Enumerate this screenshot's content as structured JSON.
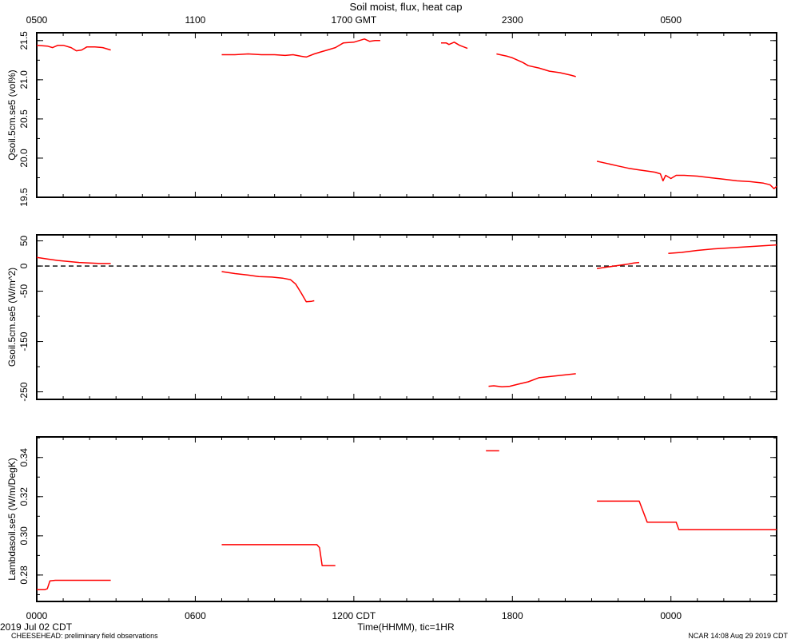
{
  "title": "Soil moist, flux, heat cap",
  "top_axis": {
    "ticks": [
      "0500",
      "1100",
      "1700 GMT",
      "2300",
      "0500"
    ]
  },
  "bottom_axis": {
    "ticks": [
      "0000",
      "0600",
      "1200 CDT",
      "1800",
      "0000"
    ],
    "xlabel": "Time(HHMM), tic=1HR"
  },
  "footer": {
    "date": "2019 Jul 02 CDT",
    "left": "CHEESEHEAD: preliminary field observations",
    "right": "NCAR 14:08 Aug 29 2019 CDT"
  },
  "colors": {
    "series": "#ff0000"
  },
  "chart_data": [
    {
      "type": "line",
      "ylabel": "Qsoil.5cm.se5 (vol%)",
      "ylim": [
        19.5,
        21.6
      ],
      "yticks": [
        "19.5",
        "20.0",
        "20.5",
        "21.0",
        "21.5"
      ],
      "x_unit": "hour CDT",
      "segments": [
        [
          [
            0,
            21.44
          ],
          [
            0.4,
            21.43
          ],
          [
            0.6,
            21.41
          ],
          [
            0.8,
            21.44
          ],
          [
            1.0,
            21.44
          ],
          [
            1.3,
            21.41
          ],
          [
            1.5,
            21.37
          ],
          [
            1.7,
            21.38
          ],
          [
            1.9,
            21.42
          ],
          [
            2.2,
            21.42
          ],
          [
            2.5,
            21.41
          ],
          [
            2.8,
            21.38
          ]
        ],
        [
          [
            7.0,
            21.32
          ],
          [
            7.5,
            21.32
          ],
          [
            8.0,
            21.33
          ],
          [
            8.5,
            21.32
          ],
          [
            9.0,
            21.32
          ],
          [
            9.4,
            21.31
          ],
          [
            9.7,
            21.32
          ],
          [
            10.0,
            21.3
          ],
          [
            10.2,
            21.29
          ],
          [
            10.5,
            21.33
          ],
          [
            10.8,
            21.36
          ],
          [
            11.0,
            21.38
          ],
          [
            11.3,
            21.41
          ],
          [
            11.6,
            21.47
          ],
          [
            12.0,
            21.48
          ],
          [
            12.2,
            21.5
          ],
          [
            12.4,
            21.52
          ],
          [
            12.6,
            21.49
          ],
          [
            12.8,
            21.5
          ],
          [
            13.0,
            21.5
          ]
        ],
        [
          [
            15.3,
            21.47
          ],
          [
            15.5,
            21.47
          ],
          [
            15.6,
            21.45
          ],
          [
            15.8,
            21.48
          ],
          [
            16.0,
            21.44
          ],
          [
            16.3,
            21.4
          ]
        ],
        [
          [
            17.4,
            21.33
          ],
          [
            17.8,
            21.3
          ],
          [
            18.0,
            21.28
          ],
          [
            18.4,
            21.22
          ],
          [
            18.6,
            21.18
          ],
          [
            19.0,
            21.15
          ],
          [
            19.4,
            21.11
          ],
          [
            19.8,
            21.09
          ],
          [
            20.2,
            21.06
          ],
          [
            20.4,
            21.04
          ]
        ],
        [
          [
            21.2,
            19.96
          ],
          [
            21.6,
            19.93
          ],
          [
            22.0,
            19.9
          ],
          [
            22.4,
            19.87
          ],
          [
            22.8,
            19.85
          ],
          [
            23.2,
            19.83
          ],
          [
            23.4,
            19.82
          ],
          [
            23.6,
            19.8
          ],
          [
            23.7,
            19.71
          ],
          [
            23.8,
            19.78
          ],
          [
            24.0,
            19.74
          ],
          [
            24.2,
            19.78
          ],
          [
            24.5,
            19.78
          ],
          [
            25.0,
            19.77
          ],
          [
            25.5,
            19.75
          ],
          [
            26.0,
            19.73
          ],
          [
            26.5,
            19.71
          ],
          [
            27.0,
            19.7
          ],
          [
            27.5,
            19.68
          ],
          [
            27.75,
            19.66
          ],
          [
            27.9,
            19.61
          ],
          [
            28.0,
            19.64
          ]
        ]
      ]
    },
    {
      "type": "line",
      "ylabel": "Gsoil.5cm.se5 (W/m^2)",
      "ylim": [
        -265,
        62
      ],
      "yticks": [
        "-250",
        "-150",
        "-50",
        "0",
        "50"
      ],
      "zero_line": true,
      "x_unit": "hour CDT",
      "segments": [
        [
          [
            0,
            17
          ],
          [
            0.4,
            14
          ],
          [
            0.8,
            11
          ],
          [
            1.2,
            9
          ],
          [
            1.6,
            7
          ],
          [
            2.0,
            6
          ],
          [
            2.4,
            5
          ],
          [
            2.8,
            5
          ]
        ],
        [
          [
            7.0,
            -11
          ],
          [
            7.5,
            -15
          ],
          [
            8.0,
            -18
          ],
          [
            8.4,
            -21
          ],
          [
            8.9,
            -22
          ],
          [
            9.3,
            -24
          ],
          [
            9.6,
            -27
          ],
          [
            9.8,
            -36
          ],
          [
            10.0,
            -53
          ],
          [
            10.2,
            -71
          ],
          [
            10.4,
            -70
          ],
          [
            10.5,
            -69
          ]
        ],
        [
          [
            17.1,
            -239
          ],
          [
            17.3,
            -238
          ],
          [
            17.6,
            -240
          ],
          [
            17.9,
            -239
          ],
          [
            18.2,
            -235
          ],
          [
            18.6,
            -230
          ],
          [
            19.0,
            -222
          ],
          [
            20.4,
            -214
          ]
        ],
        [
          [
            21.2,
            -5
          ],
          [
            21.6,
            -2
          ],
          [
            22.0,
            1
          ],
          [
            22.4,
            4
          ],
          [
            22.6,
            6
          ],
          [
            22.8,
            7
          ]
        ],
        [
          [
            23.9,
            25
          ],
          [
            24.4,
            27
          ],
          [
            25.0,
            31
          ],
          [
            25.6,
            34
          ],
          [
            26.2,
            36
          ],
          [
            26.8,
            38
          ],
          [
            27.4,
            40
          ],
          [
            28.0,
            42
          ]
        ]
      ]
    },
    {
      "type": "line",
      "ylabel": "Lambdasoil.se5 (W/m/DegK)",
      "ylim": [
        0.2665,
        0.3505
      ],
      "yticks": [
        "0.28",
        "0.30",
        "0.32",
        "0.34"
      ],
      "x_unit": "hour CDT",
      "segments": [
        [
          [
            0,
            0.2725
          ],
          [
            0.3,
            0.2725
          ],
          [
            0.4,
            0.273
          ],
          [
            0.5,
            0.277
          ],
          [
            0.7,
            0.2773
          ],
          [
            2.8,
            0.2773
          ]
        ],
        [
          [
            7.0,
            0.2955
          ],
          [
            10.6,
            0.2955
          ],
          [
            10.7,
            0.294
          ],
          [
            10.8,
            0.2848
          ],
          [
            11.3,
            0.2848
          ]
        ],
        [
          [
            17.0,
            0.3434
          ],
          [
            17.5,
            0.3434
          ]
        ],
        [
          [
            21.2,
            0.3177
          ],
          [
            22.8,
            0.3177
          ],
          [
            23.1,
            0.307
          ],
          [
            24.2,
            0.307
          ],
          [
            24.3,
            0.3032
          ],
          [
            28.0,
            0.3032
          ]
        ]
      ]
    }
  ]
}
